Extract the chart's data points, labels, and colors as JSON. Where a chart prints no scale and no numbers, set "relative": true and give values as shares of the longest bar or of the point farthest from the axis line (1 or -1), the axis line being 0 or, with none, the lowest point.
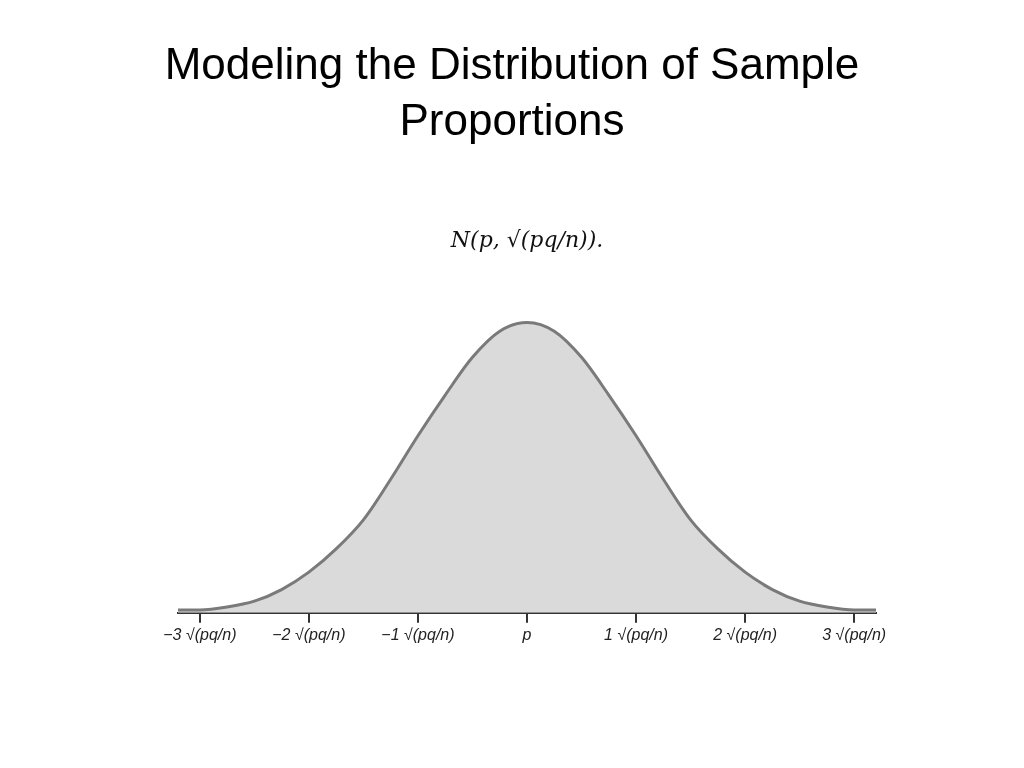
{
  "chart_data": {
    "type": "area",
    "title": "Modeling the Distribution of Sample Proportions",
    "subtitle": "N(p, √(pq/n)).",
    "x": [
      -3.2,
      -3,
      -2.75,
      -2.5,
      -2.25,
      -2,
      -1.75,
      -1.5,
      -1.25,
      -1,
      -0.75,
      -0.5,
      -0.25,
      0,
      0.25,
      0.5,
      0.75,
      1,
      1.25,
      1.5,
      1.75,
      2,
      2.25,
      2.5,
      2.75,
      3,
      3.2
    ],
    "series": [
      {
        "color": "#7a7a7a",
        "values": [
          0.01,
          0.01,
          0.02,
          0.04,
          0.08,
          0.14,
          0.22,
          0.32,
          0.46,
          0.61,
          0.75,
          0.88,
          0.97,
          1,
          0.97,
          0.88,
          0.75,
          0.61,
          0.46,
          0.32,
          0.22,
          0.14,
          0.08,
          0.04,
          0.02,
          0.01,
          0.01
        ]
      }
    ],
    "relative": true,
    "xlim": [
      -3.2,
      3.2
    ],
    "xticks": [
      {
        "value": -3,
        "label": "−3 √(pq/n)"
      },
      {
        "value": -2,
        "label": "−2 √(pq/n)"
      },
      {
        "value": -1,
        "label": "−1 √(pq/n)"
      },
      {
        "value": 0,
        "label": "p"
      },
      {
        "value": 1,
        "label": "1 √(pq/n)"
      },
      {
        "value": 2,
        "label": "2 √(pq/n)"
      },
      {
        "value": 3,
        "label": "3 √(pq/n)"
      }
    ],
    "grid": false,
    "legend": false,
    "marker": "none",
    "line_style": "solid"
  }
}
